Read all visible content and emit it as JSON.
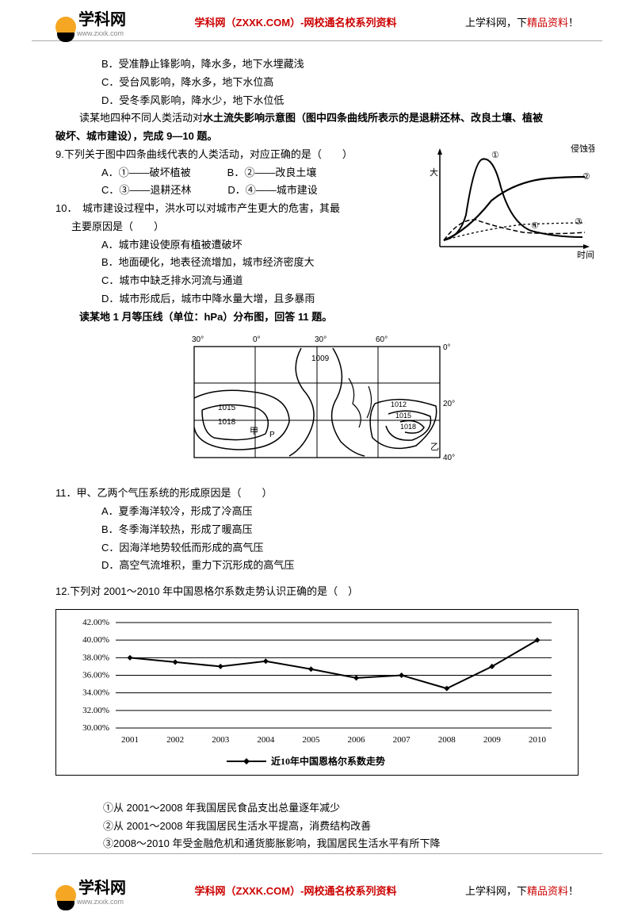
{
  "header": {
    "logo_text": "学科网",
    "logo_url": "www.zxxk.com",
    "mid": "学科网（ZXXK.COM）-网校通名校系列资料",
    "right_a": "上学科网，下",
    "right_b": "精品资料",
    "right_c": "！"
  },
  "opt_b": "B．受准静止锋影响，降水多，地下水埋藏浅",
  "opt_c": "C．受台风影响，降水多，地下水位高",
  "opt_d": "D．受冬季风影响，降水少，地下水位低",
  "intro_9_a": "读某地四种不同人类活动对",
  "intro_9_b": "水土流失影响示意图（图中四条曲线所表示的是退耕还林、改良土壤、植被",
  "intro_9_c": "破坏、城市建设），完成 9—10 题。",
  "q9": "9.下列关于图中四条曲线代表的人类活动，对应正确的是（　　）",
  "q9_a": "A．①——破坏植被",
  "q9_b": "B．②——改良土壤",
  "q9_c": "C．③——退耕还林",
  "q9_d": "D．④——城市建设",
  "q10": "10．　城市建设过程中，洪水可以对城市产生更大的危害，其最",
  "q10_cont": "主要原因是（　　）",
  "q10_a": "A．城市建设使原有植被遭破坏",
  "q10_b": "B．地面硬化，地表径流增加，城市经济密度大",
  "q10_c": "C．城市中缺乏排水河流与通道",
  "q10_d": "D．城市形成后，城市中降水量大增，且多暴雨",
  "intro_11": "读某地 1 月等压线（单位：hPa）分布图，回答 11 题。",
  "q11": "11．甲、乙两个气压系统的形成原因是（　　）",
  "q11_a": "A．夏季海洋较冷，形成了冷高压",
  "q11_b": "B．冬季海洋较热，形成了暖高压",
  "q11_c": "C．因海洋地势较低而形成的高气压",
  "q11_d": "D．高空气流堆积，重力下沉形成的高气压",
  "q12": "12.下列对 2001～2010 年中国恩格尔系数走势认识正确的是（　）",
  "q12_s1": "①从 2001～2008 年我国居民食品支出总量逐年减少",
  "q12_s2": "②从 2001～2008 年我国居民生活水平提高，消费结构改善",
  "q12_s3": "③2008～2010 年受金融危机和通货膨胀影响，我国居民生活水平有所下降",
  "erosion_chart": {
    "ylabel_top": "侵蚀强度",
    "ylabel_low": "大",
    "xlabel": "时间",
    "curves": {
      "c1": {
        "label": "①",
        "label_xy": [
          90,
          18
        ],
        "color": "#000"
      },
      "c2": {
        "label": "②",
        "label_xy": [
          205,
          45
        ],
        "color": "#000"
      },
      "c3": {
        "label": "③",
        "label_xy": [
          195,
          102
        ],
        "color": "#000"
      },
      "c4": {
        "label": "④",
        "label_xy": [
          140,
          107
        ],
        "color": "#000"
      }
    }
  },
  "map": {
    "lon_ticks": [
      "30°",
      "0°",
      "30°",
      "60°"
    ],
    "lat_ticks": [
      "0°",
      "20°",
      "40°"
    ],
    "iso": [
      "1009",
      "1015",
      "1018",
      "1012",
      "1015",
      "1018"
    ],
    "labels": {
      "jia": "甲",
      "yi": "乙",
      "p": "P"
    }
  },
  "engel": {
    "type": "line",
    "x_ticks": [
      "2001",
      "2002",
      "2003",
      "2004",
      "2005",
      "2006",
      "2007",
      "2008",
      "2009",
      "2010"
    ],
    "y_ticks": [
      "30.00%",
      "32.00%",
      "34.00%",
      "36.00%",
      "38.00%",
      "40.00%",
      "42.00%"
    ],
    "values": [
      38.0,
      37.5,
      37.0,
      37.6,
      36.7,
      35.7,
      36.0,
      34.5,
      37.0,
      40.0
    ],
    "ylim": [
      30,
      42
    ],
    "ytick_step": 2,
    "series_color": "#000000",
    "marker": "diamond",
    "marker_size": 7,
    "line_width": 2,
    "grid_color": "#000000",
    "background": "#ffffff",
    "legend": "近10年中国恩格尔系数走势"
  }
}
